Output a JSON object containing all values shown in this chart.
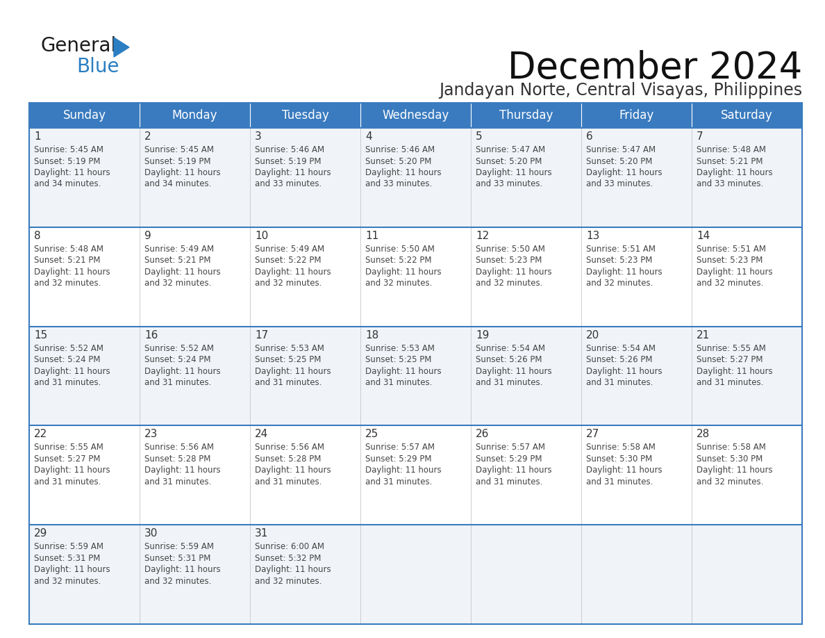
{
  "title": "December 2024",
  "subtitle": "Jandayan Norte, Central Visayas, Philippines",
  "header_color": "#3a7bbf",
  "header_text_color": "#ffffff",
  "row_bg_even": "#f0f4f8",
  "row_bg_odd": "#ffffff",
  "border_color": "#3a7bbf",
  "inner_border_color": "#3a7bbf",
  "day_text_color": "#333333",
  "content_text_color": "#444444",
  "days_of_week": [
    "Sunday",
    "Monday",
    "Tuesday",
    "Wednesday",
    "Thursday",
    "Friday",
    "Saturday"
  ],
  "weeks": [
    [
      {
        "day": 1,
        "sunrise": "5:45 AM",
        "sunset": "5:19 PM",
        "daylight_hours": 11,
        "daylight_minutes": 34
      },
      {
        "day": 2,
        "sunrise": "5:45 AM",
        "sunset": "5:19 PM",
        "daylight_hours": 11,
        "daylight_minutes": 34
      },
      {
        "day": 3,
        "sunrise": "5:46 AM",
        "sunset": "5:19 PM",
        "daylight_hours": 11,
        "daylight_minutes": 33
      },
      {
        "day": 4,
        "sunrise": "5:46 AM",
        "sunset": "5:20 PM",
        "daylight_hours": 11,
        "daylight_minutes": 33
      },
      {
        "day": 5,
        "sunrise": "5:47 AM",
        "sunset": "5:20 PM",
        "daylight_hours": 11,
        "daylight_minutes": 33
      },
      {
        "day": 6,
        "sunrise": "5:47 AM",
        "sunset": "5:20 PM",
        "daylight_hours": 11,
        "daylight_minutes": 33
      },
      {
        "day": 7,
        "sunrise": "5:48 AM",
        "sunset": "5:21 PM",
        "daylight_hours": 11,
        "daylight_minutes": 33
      }
    ],
    [
      {
        "day": 8,
        "sunrise": "5:48 AM",
        "sunset": "5:21 PM",
        "daylight_hours": 11,
        "daylight_minutes": 32
      },
      {
        "day": 9,
        "sunrise": "5:49 AM",
        "sunset": "5:21 PM",
        "daylight_hours": 11,
        "daylight_minutes": 32
      },
      {
        "day": 10,
        "sunrise": "5:49 AM",
        "sunset": "5:22 PM",
        "daylight_hours": 11,
        "daylight_minutes": 32
      },
      {
        "day": 11,
        "sunrise": "5:50 AM",
        "sunset": "5:22 PM",
        "daylight_hours": 11,
        "daylight_minutes": 32
      },
      {
        "day": 12,
        "sunrise": "5:50 AM",
        "sunset": "5:23 PM",
        "daylight_hours": 11,
        "daylight_minutes": 32
      },
      {
        "day": 13,
        "sunrise": "5:51 AM",
        "sunset": "5:23 PM",
        "daylight_hours": 11,
        "daylight_minutes": 32
      },
      {
        "day": 14,
        "sunrise": "5:51 AM",
        "sunset": "5:23 PM",
        "daylight_hours": 11,
        "daylight_minutes": 32
      }
    ],
    [
      {
        "day": 15,
        "sunrise": "5:52 AM",
        "sunset": "5:24 PM",
        "daylight_hours": 11,
        "daylight_minutes": 31
      },
      {
        "day": 16,
        "sunrise": "5:52 AM",
        "sunset": "5:24 PM",
        "daylight_hours": 11,
        "daylight_minutes": 31
      },
      {
        "day": 17,
        "sunrise": "5:53 AM",
        "sunset": "5:25 PM",
        "daylight_hours": 11,
        "daylight_minutes": 31
      },
      {
        "day": 18,
        "sunrise": "5:53 AM",
        "sunset": "5:25 PM",
        "daylight_hours": 11,
        "daylight_minutes": 31
      },
      {
        "day": 19,
        "sunrise": "5:54 AM",
        "sunset": "5:26 PM",
        "daylight_hours": 11,
        "daylight_minutes": 31
      },
      {
        "day": 20,
        "sunrise": "5:54 AM",
        "sunset": "5:26 PM",
        "daylight_hours": 11,
        "daylight_minutes": 31
      },
      {
        "day": 21,
        "sunrise": "5:55 AM",
        "sunset": "5:27 PM",
        "daylight_hours": 11,
        "daylight_minutes": 31
      }
    ],
    [
      {
        "day": 22,
        "sunrise": "5:55 AM",
        "sunset": "5:27 PM",
        "daylight_hours": 11,
        "daylight_minutes": 31
      },
      {
        "day": 23,
        "sunrise": "5:56 AM",
        "sunset": "5:28 PM",
        "daylight_hours": 11,
        "daylight_minutes": 31
      },
      {
        "day": 24,
        "sunrise": "5:56 AM",
        "sunset": "5:28 PM",
        "daylight_hours": 11,
        "daylight_minutes": 31
      },
      {
        "day": 25,
        "sunrise": "5:57 AM",
        "sunset": "5:29 PM",
        "daylight_hours": 11,
        "daylight_minutes": 31
      },
      {
        "day": 26,
        "sunrise": "5:57 AM",
        "sunset": "5:29 PM",
        "daylight_hours": 11,
        "daylight_minutes": 31
      },
      {
        "day": 27,
        "sunrise": "5:58 AM",
        "sunset": "5:30 PM",
        "daylight_hours": 11,
        "daylight_minutes": 31
      },
      {
        "day": 28,
        "sunrise": "5:58 AM",
        "sunset": "5:30 PM",
        "daylight_hours": 11,
        "daylight_minutes": 32
      }
    ],
    [
      {
        "day": 29,
        "sunrise": "5:59 AM",
        "sunset": "5:31 PM",
        "daylight_hours": 11,
        "daylight_minutes": 32
      },
      {
        "day": 30,
        "sunrise": "5:59 AM",
        "sunset": "5:31 PM",
        "daylight_hours": 11,
        "daylight_minutes": 32
      },
      {
        "day": 31,
        "sunrise": "6:00 AM",
        "sunset": "5:32 PM",
        "daylight_hours": 11,
        "daylight_minutes": 32
      },
      null,
      null,
      null,
      null
    ]
  ],
  "logo_general_color": "#1a1a1a",
  "logo_blue_color": "#2b7ec1",
  "logo_triangle_color": "#2b7ec1",
  "title_fontsize": 38,
  "subtitle_fontsize": 17,
  "header_fontsize": 12,
  "day_number_fontsize": 11,
  "cell_text_fontsize": 8.5
}
